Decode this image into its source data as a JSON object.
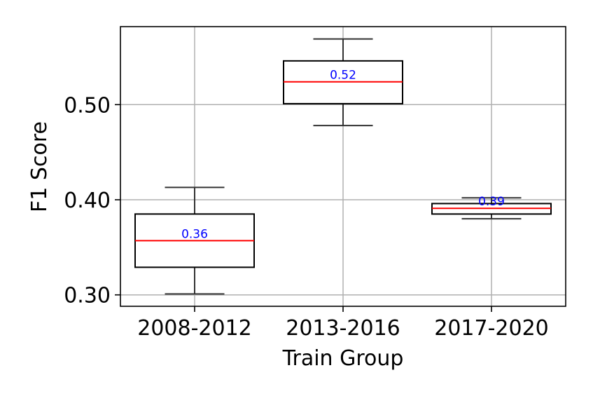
{
  "chart_data": {
    "type": "box",
    "title": "",
    "xlabel": "Train Group",
    "ylabel": "F1 Score",
    "ylim": [
      0.288,
      0.582
    ],
    "yticks": [
      0.3,
      0.4,
      0.5
    ],
    "ytick_labels": [
      "0.30",
      "0.40",
      "0.50"
    ],
    "grid": true,
    "categories": [
      "2008-2012",
      "2013-2016",
      "2017-2020"
    ],
    "boxes": [
      {
        "whislo": 0.301,
        "q1": 0.329,
        "med": 0.357,
        "q3": 0.385,
        "whishi": 0.413,
        "label": "0.36"
      },
      {
        "whislo": 0.478,
        "q1": 0.501,
        "med": 0.524,
        "q3": 0.546,
        "whishi": 0.569,
        "label": "0.52"
      },
      {
        "whislo": 0.38,
        "q1": 0.385,
        "med": 0.391,
        "q3": 0.396,
        "whishi": 0.402,
        "label": "0.39"
      }
    ],
    "colors": {
      "box": "#000000",
      "median": "#ff0000",
      "whisker": "#333333",
      "grid": "#b0b0b0",
      "data_label": "#0000ff"
    }
  }
}
